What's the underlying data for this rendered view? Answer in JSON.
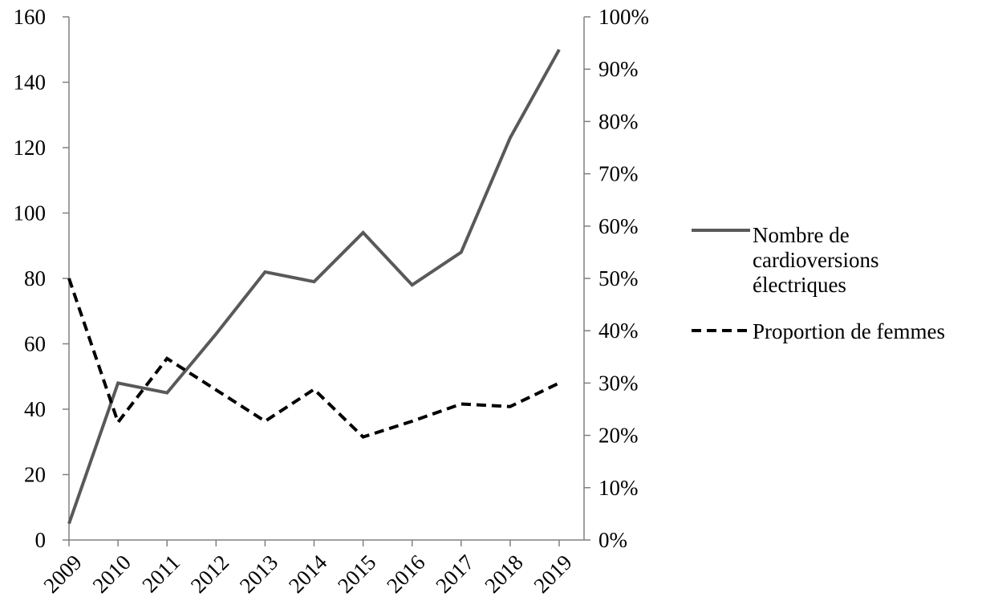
{
  "chart_data": {
    "type": "line",
    "title": "",
    "xlabel": "",
    "ylabel": "",
    "x": [
      "2009",
      "2010",
      "2011",
      "2012",
      "2013",
      "2014",
      "2015",
      "2016",
      "2017",
      "2018",
      "2019"
    ],
    "y_left": {
      "range": [
        0,
        160
      ],
      "ticks": [
        "0",
        "20",
        "40",
        "60",
        "80",
        "100",
        "120",
        "140",
        "160"
      ],
      "tick_values": [
        0,
        20,
        40,
        60,
        80,
        100,
        120,
        140,
        160
      ]
    },
    "y_right": {
      "range": [
        0,
        100
      ],
      "ticks": [
        "0%",
        "10%",
        "20%",
        "30%",
        "40%",
        "50%",
        "60%",
        "70%",
        "80%",
        "90%",
        "100%"
      ],
      "tick_values": [
        0,
        10,
        20,
        30,
        40,
        50,
        60,
        70,
        80,
        90,
        100
      ]
    },
    "series": [
      {
        "name": "Nombre de cardioversions électriques",
        "name_lines": [
          "Nombre de",
          "cardioversions",
          "électriques"
        ],
        "axis": "left",
        "style": "solid",
        "color": "#595959",
        "values": [
          5,
          48,
          45,
          63,
          82,
          79,
          94,
          78,
          88,
          123,
          150
        ]
      },
      {
        "name": "Proportion de femmes",
        "name_lines": [
          "Proportion de femmes"
        ],
        "axis": "right",
        "style": "dashed",
        "color": "#000000",
        "values": [
          50,
          22.5,
          34.7,
          28.7,
          22.7,
          28.8,
          19.7,
          22.7,
          26,
          25.5,
          30
        ]
      }
    ],
    "legend_position": "right",
    "grid": false
  }
}
